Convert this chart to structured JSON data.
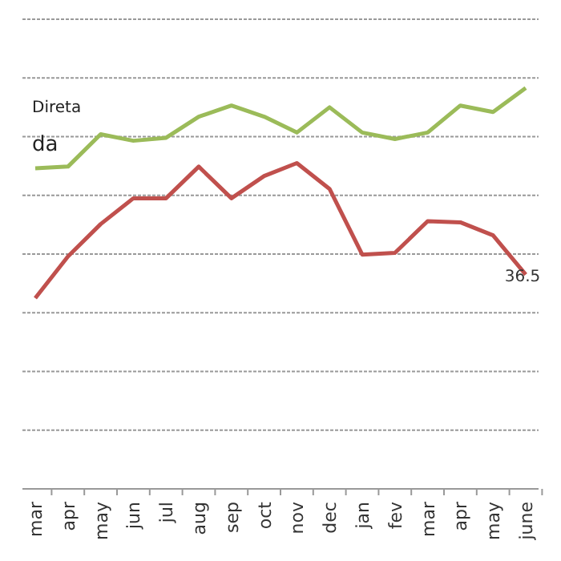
{
  "chart_data": {
    "type": "line",
    "grid": "y",
    "tick_labels": "x",
    "ylim": [
      0,
      80
    ],
    "yticks": [
      {
        "value": 0,
        "label": null
      },
      {
        "value": 10,
        "label": null
      },
      {
        "value": 20,
        "label": null
      },
      {
        "value": 30,
        "label": null
      },
      {
        "value": 40,
        "label": null
      },
      {
        "value": 50,
        "label": null
      },
      {
        "value": 60,
        "label": null
      },
      {
        "value": 70,
        "label": null
      },
      {
        "value": 80,
        "label": null
      }
    ],
    "categories": [
      "mar",
      "apr",
      "may",
      "jun",
      "jul",
      "aug",
      "sep",
      "oct",
      "nov",
      "dec",
      "jan",
      "fev",
      "mar",
      "apr",
      "may",
      "june"
    ],
    "series": [
      {
        "color": "#9bbb59",
        "values": [
          54.6,
          54.9,
          60.4,
          59.3,
          59.8,
          63.4,
          65.3,
          63.4,
          60.7,
          65,
          60.7,
          59.6,
          60.7,
          65.3,
          64.2,
          68.3
        ]
      },
      {
        "color": "#c0504d",
        "values": [
          32.5,
          39.6,
          45.1,
          49.5,
          49.5,
          54.9,
          49.5,
          53.3,
          55.5,
          51.1,
          39.9,
          40.2,
          45.6,
          45.4,
          43.2,
          36.5
        ],
        "value_labels": [
          null,
          null,
          null,
          null,
          null,
          null,
          null,
          null,
          null,
          null,
          null,
          null,
          null,
          null,
          null,
          "36.5"
        ]
      }
    ],
    "annotations": [
      "Direta",
      "da"
    ]
  }
}
